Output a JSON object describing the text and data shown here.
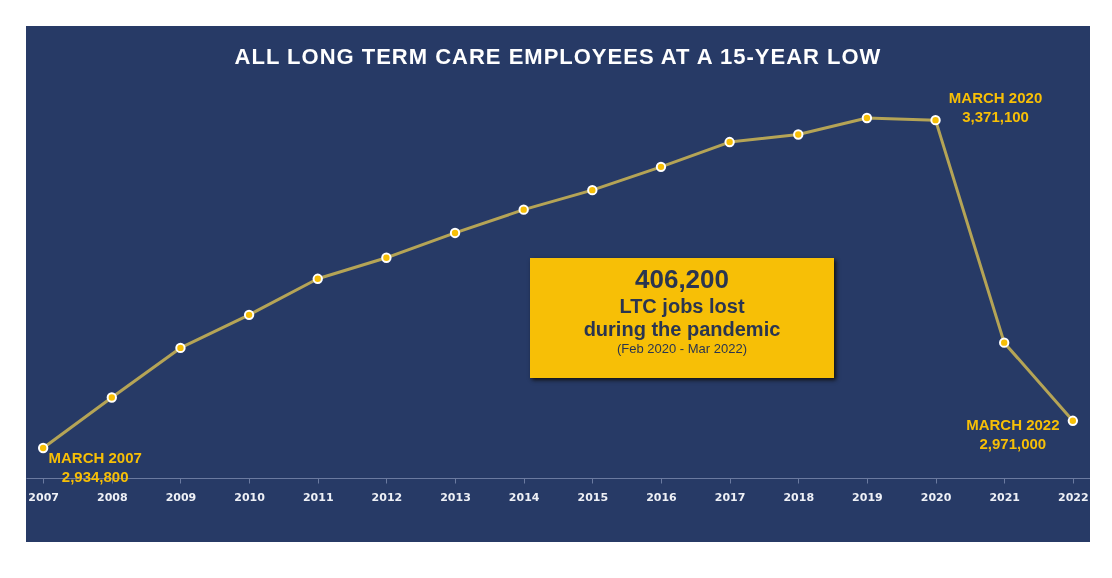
{
  "chart_data": {
    "type": "line",
    "title": "ALL LONG TERM CARE EMPLOYEES AT A 15-YEAR LOW",
    "categories": [
      "2007",
      "2008",
      "2009",
      "2010",
      "2011",
      "2012",
      "2013",
      "2014",
      "2015",
      "2016",
      "2017",
      "2018",
      "2019",
      "2020",
      "2021",
      "2022"
    ],
    "series": [
      {
        "color": "#b5a456",
        "values": [
          2934800,
          3002000,
          3068000,
          3112000,
          3160000,
          3188000,
          3221000,
          3252000,
          3278000,
          3309000,
          3342000,
          3352000,
          3374000,
          3371100,
          3075000,
          2971000
        ],
        "value_labels": [
          "2,934,800",
          null,
          null,
          null,
          null,
          null,
          null,
          null,
          null,
          null,
          null,
          null,
          null,
          "3,371,100",
          null,
          "2,971,000"
        ]
      }
    ],
    "tick_labels": "x",
    "marker": "circle",
    "grid": false,
    "annotations": [
      {
        "text": "MARCH 2007",
        "x": "2007",
        "y": 2934800
      },
      {
        "text": "MARCH 2020",
        "x": "2020",
        "y": 3371100
      },
      {
        "text": "MARCH 2022",
        "x": "2022",
        "y": 2971000
      },
      "406,200",
      "LTC jobs lost",
      "during the pandemic",
      "(Feb 2020 - Mar 2022)"
    ]
  }
}
